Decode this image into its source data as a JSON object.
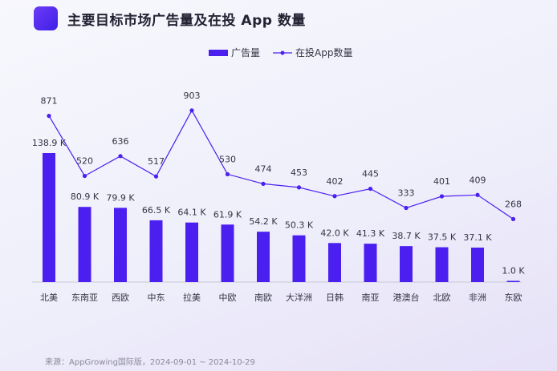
{
  "header": {
    "title": "主要目标市场广告量及在投 App 数量"
  },
  "footer": {
    "source": "来源：AppGrowing国际版，2024-09-01 ~ 2024-10-29"
  },
  "colors": {
    "bar": "#4b1ff0",
    "line": "#4b1ff0",
    "text": "#333344",
    "axis": "#c8c8d8"
  },
  "chart_data": {
    "type": "bar",
    "categories": [
      "北美",
      "东南亚",
      "西欧",
      "中东",
      "拉美",
      "中欧",
      "南欧",
      "大洋洲",
      "日韩",
      "南亚",
      "港澳台",
      "北欧",
      "非洲",
      "东欧"
    ],
    "series": [
      {
        "name": "广告量",
        "type": "bar",
        "values": [
          138.9,
          80.9,
          79.9,
          66.5,
          64.1,
          61.9,
          54.2,
          50.3,
          42.0,
          41.3,
          38.7,
          37.5,
          37.1,
          1.0
        ],
        "labels": [
          "138.9 K",
          "80.9 K",
          "79.9 K",
          "66.5 K",
          "64.1 K",
          "61.9 K",
          "54.2 K",
          "50.3 K",
          "42.0 K",
          "41.3 K",
          "38.7 K",
          "37.5 K",
          "37.1 K",
          "1.0 K"
        ]
      },
      {
        "name": "在投App数量",
        "type": "line",
        "values": [
          871,
          520,
          636,
          517,
          903,
          530,
          474,
          453,
          402,
          445,
          333,
          401,
          409,
          268
        ]
      }
    ],
    "legend_position": "top-center",
    "grid": false
  }
}
